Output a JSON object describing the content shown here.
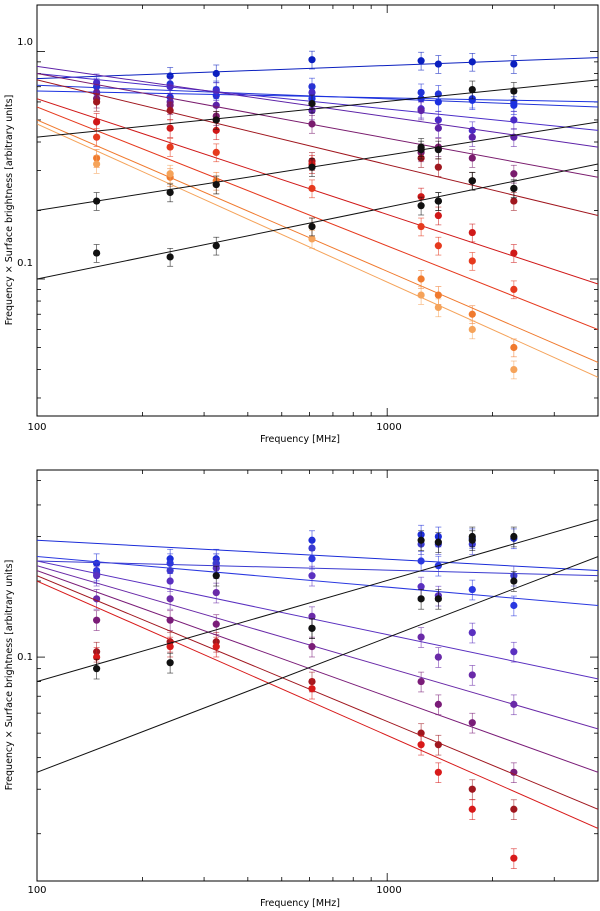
{
  "chart_data": [
    {
      "type": "scatter",
      "title": "",
      "xlabel": "Frequency [MHz]",
      "ylabel": "Frequency × Surface brightness [arbitrary units]",
      "xscale": "log",
      "yscale": "log",
      "xlim": [
        100,
        4000
      ],
      "ylim": [
        0.025,
        1.6
      ],
      "xticks": [
        100,
        1000
      ],
      "xtick_labels": [
        "100",
        "1000"
      ],
      "yticks": [
        0.1,
        1.0
      ],
      "ytick_labels": [
        "0.1",
        "1.0"
      ],
      "grid": false,
      "legend": "none",
      "x": [
        148,
        240,
        325,
        610,
        1250,
        1400,
        1750,
        2300
      ],
      "series": [
        {
          "color": "#0a1fbf",
          "values": [
            null,
            0.78,
            0.8,
            0.92,
            0.91,
            0.88,
            0.9,
            0.88
          ],
          "fit": [
            0.76,
            0.94
          ]
        },
        {
          "color": "#2234d6",
          "values": [
            0.7,
            0.72,
            0.68,
            0.7,
            0.66,
            0.65,
            0.62,
            0.6
          ],
          "fit": [
            0.71,
            0.57
          ]
        },
        {
          "color": "#1a30e0",
          "values": [
            0.66,
            0.63,
            0.64,
            0.62,
            0.62,
            0.6,
            0.61,
            0.58
          ],
          "fit": [
            0.67,
            0.6
          ]
        },
        {
          "color": "#4a2cc8",
          "values": [
            0.73,
            0.7,
            0.67,
            0.66,
            0.56,
            0.5,
            0.45,
            0.5
          ],
          "fit": [
            0.8,
            0.45
          ]
        },
        {
          "color": "#5d22a8",
          "values": [
            0.66,
            0.6,
            0.58,
            0.55,
            0.55,
            0.46,
            0.42,
            0.42
          ],
          "fit": [
            0.86,
            0.38
          ]
        },
        {
          "color": "#7a1c6e",
          "values": [
            0.62,
            0.58,
            0.52,
            0.48,
            0.36,
            0.38,
            0.34,
            0.29
          ],
          "fit": [
            0.8,
            0.28
          ]
        },
        {
          "color": "#a0171f",
          "values": [
            0.6,
            0.55,
            0.5,
            0.33,
            0.34,
            0.31,
            0.27,
            0.22
          ],
          "fit": [
            0.75,
            0.19
          ]
        },
        {
          "color": "#d01818",
          "values": [
            0.49,
            0.46,
            0.45,
            0.32,
            0.23,
            0.19,
            0.16,
            0.13
          ],
          "fit": [
            0.62,
            0.095
          ]
        },
        {
          "color": "#e63a1e",
          "values": [
            0.42,
            0.38,
            0.36,
            0.25,
            0.17,
            0.14,
            0.12,
            0.09
          ],
          "fit": [
            0.57,
            0.06
          ]
        },
        {
          "color": "#f07a2e",
          "values": [
            0.34,
            0.28,
            0.27,
            0.17,
            0.1,
            0.085,
            0.07,
            0.05
          ],
          "fit": [
            0.5,
            0.043
          ]
        },
        {
          "color": "#f5a35a",
          "values": [
            0.32,
            0.29,
            0.26,
            0.15,
            0.085,
            0.075,
            0.06,
            0.04
          ],
          "fit": [
            0.48,
            0.037
          ]
        },
        {
          "color": "#111111",
          "values": [
            0.22,
            0.24,
            0.5,
            0.59,
            0.38,
            0.37,
            0.68,
            0.67
          ],
          "fit": [
            0.42,
            0.75
          ]
        },
        {
          "color": "#111111",
          "values": [
            null,
            null,
            0.26,
            0.31,
            0.37,
            0.22,
            0.27,
            0.25
          ],
          "fit": [
            0.2,
            0.49
          ]
        },
        {
          "color": "#111111",
          "values": [
            0.13,
            0.125,
            0.14,
            0.17,
            0.21,
            0.22,
            0.27,
            0.25
          ],
          "fit": [
            0.1,
            0.32
          ]
        }
      ]
    },
    {
      "type": "scatter",
      "title": "",
      "xlabel": "Frequency [MHz]",
      "ylabel": "Frequency × Surface brightness [arbitrary units]",
      "xscale": "log",
      "yscale": "log",
      "xlim": [
        100,
        4000
      ],
      "ylim": [
        0.013,
        0.55
      ],
      "xticks": [
        100,
        1000
      ],
      "xtick_labels": [
        "100",
        "1000"
      ],
      "yticks": [
        0.1
      ],
      "ytick_labels": [
        "0.1"
      ],
      "grid": false,
      "legend": "none",
      "x": [
        148,
        240,
        325,
        610,
        1250,
        1400,
        1750,
        2300
      ],
      "series": [
        {
          "color": "#1a2cd8",
          "values": [
            0.235,
            0.245,
            0.245,
            0.29,
            0.305,
            0.3,
            0.295,
            0.295
          ],
          "fit": [
            0.29,
            0.22
          ]
        },
        {
          "color": "#2a38e0",
          "values": [
            0.22,
            0.235,
            0.235,
            0.245,
            0.24,
            0.23,
            0.185,
            0.16
          ],
          "fit": [
            0.25,
            0.16
          ]
        },
        {
          "color": "#3a3ad0",
          "values": [
            0.215,
            0.22,
            0.235,
            0.27,
            0.28,
            0.28,
            0.28,
            0.21
          ],
          "fit": [
            0.24,
            0.21
          ]
        },
        {
          "color": "#5a30c0",
          "values": [
            0.21,
            0.2,
            0.225,
            0.21,
            0.19,
            0.175,
            0.125,
            0.105
          ],
          "fit": [
            0.24,
            0.082
          ]
        },
        {
          "color": "#6a2aa8",
          "values": [
            0.17,
            0.17,
            0.18,
            0.145,
            0.12,
            0.1,
            0.085,
            0.065
          ],
          "fit": [
            0.23,
            0.052
          ]
        },
        {
          "color": "#7a1c78",
          "values": [
            0.14,
            0.14,
            0.135,
            0.11,
            0.08,
            0.065,
            0.055,
            0.035
          ],
          "fit": [
            0.22,
            0.035
          ]
        },
        {
          "color": "#a0171f",
          "values": [
            0.105,
            0.115,
            0.115,
            0.08,
            0.05,
            0.045,
            0.03,
            0.025
          ],
          "fit": [
            0.21,
            0.025
          ]
        },
        {
          "color": "#d81a1a",
          "values": [
            0.1,
            0.11,
            0.11,
            0.075,
            0.045,
            0.035,
            0.025,
            0.016
          ],
          "fit": [
            0.2,
            0.021
          ]
        },
        {
          "color": "#111111",
          "values": [
            0.09,
            0.095,
            0.21,
            0.13,
            0.29,
            0.285,
            0.29,
            0.3
          ],
          "fit": [
            0.08,
            0.35
          ]
        },
        {
          "color": "#111111",
          "values": [
            null,
            null,
            null,
            0.13,
            0.17,
            0.17,
            0.3,
            0.2
          ],
          "fit": [
            0.035,
            0.25
          ]
        }
      ]
    }
  ]
}
